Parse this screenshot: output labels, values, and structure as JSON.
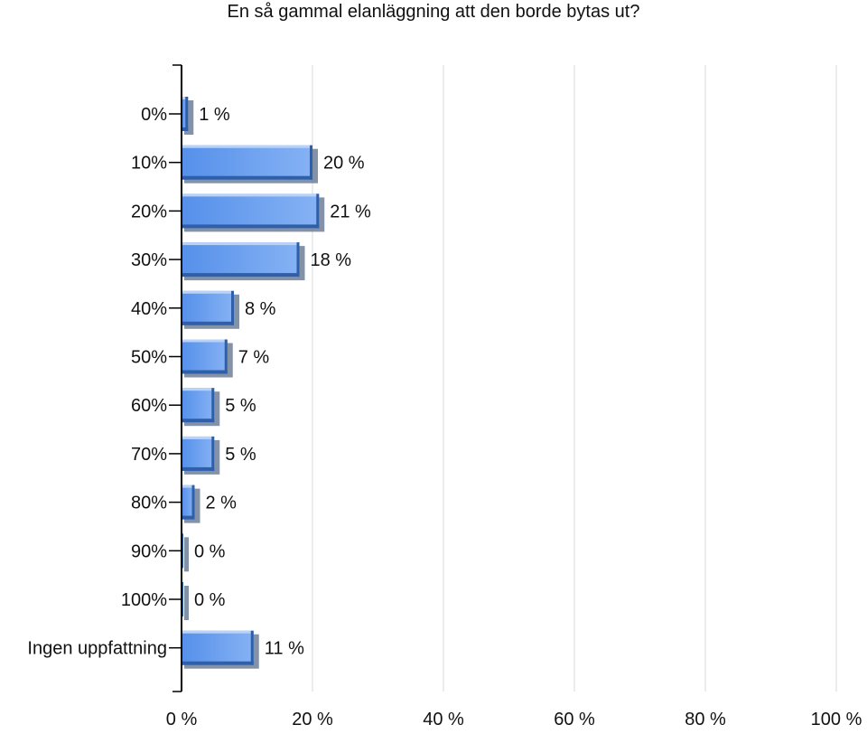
{
  "chart_data": {
    "type": "bar",
    "orientation": "horizontal",
    "title": "En så gammal elanläggning att den borde bytas ut?",
    "categories": [
      "0%",
      "10%",
      "20%",
      "30%",
      "40%",
      "50%",
      "60%",
      "70%",
      "80%",
      "90%",
      "100%",
      "Ingen uppfattning"
    ],
    "values": [
      1,
      20,
      21,
      18,
      8,
      7,
      5,
      5,
      2,
      0,
      0,
      11
    ],
    "value_labels": [
      "1 %",
      "20 %",
      "21 %",
      "18 %",
      "8 %",
      "7 %",
      "5 %",
      "5 %",
      "2 %",
      "0 %",
      "0 %",
      "11 %"
    ],
    "xlim": [
      0,
      100
    ],
    "x_ticks": [
      0,
      20,
      40,
      60,
      80,
      100
    ],
    "x_tick_labels": [
      "0 %",
      "20 %",
      "40 %",
      "60 %",
      "80 %",
      "100 %"
    ],
    "xlabel": "",
    "ylabel": "",
    "grid": true,
    "legend": "none",
    "colors": {
      "bar_light": "#86b2f4",
      "bar_main": "#5590ea",
      "bar_dark": "#2f5fa8",
      "shadow": "#6f7f98",
      "grid": "#d8d8d8",
      "axis": "#000000",
      "text": "#111111"
    }
  }
}
